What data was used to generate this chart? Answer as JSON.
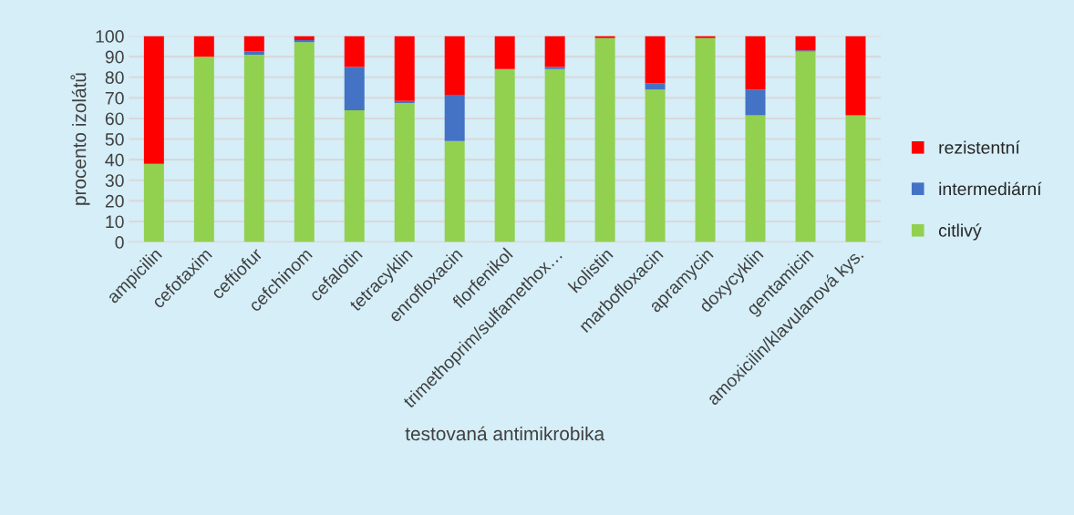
{
  "chart_data": {
    "type": "bar",
    "stacked": true,
    "xlabel": "testovaná antimikrobika",
    "ylabel": "procento izolátů",
    "categories": [
      "ampicilin",
      "cefotaxim",
      "ceftiofur",
      "cefchinom",
      "cefalotin",
      "tetracyklin",
      "enrofloxacin",
      "florfenikol",
      "trimethoprim/sulfamethox…",
      "kolistin",
      "marbofloxacin",
      "apramycin",
      "doxycyklin",
      "gentamicin",
      "amoxicilin/klavulanová kys."
    ],
    "series": [
      {
        "name": "citlivý",
        "color": "#92d050",
        "values": [
          38,
          90,
          91,
          97,
          64,
          67.5,
          49,
          84,
          84,
          99,
          74,
          99,
          61.5,
          92.5,
          61.5
        ]
      },
      {
        "name": "intermediární",
        "color": "#4472c4",
        "values": [
          0,
          0,
          1.5,
          1,
          21,
          1,
          22.5,
          0,
          1,
          0,
          3,
          0,
          12.5,
          0.5,
          0
        ]
      },
      {
        "name": "rezistentní",
        "color": "#ff0000",
        "values": [
          62,
          10,
          7.5,
          2,
          15,
          31.5,
          28.5,
          16,
          15,
          1,
          23,
          1,
          26,
          7,
          38.5
        ]
      }
    ],
    "ylim": [
      0,
      100
    ],
    "yticks": [
      0,
      10,
      20,
      30,
      40,
      50,
      60,
      70,
      80,
      90,
      100
    ],
    "grid": "y",
    "legend": "right"
  }
}
